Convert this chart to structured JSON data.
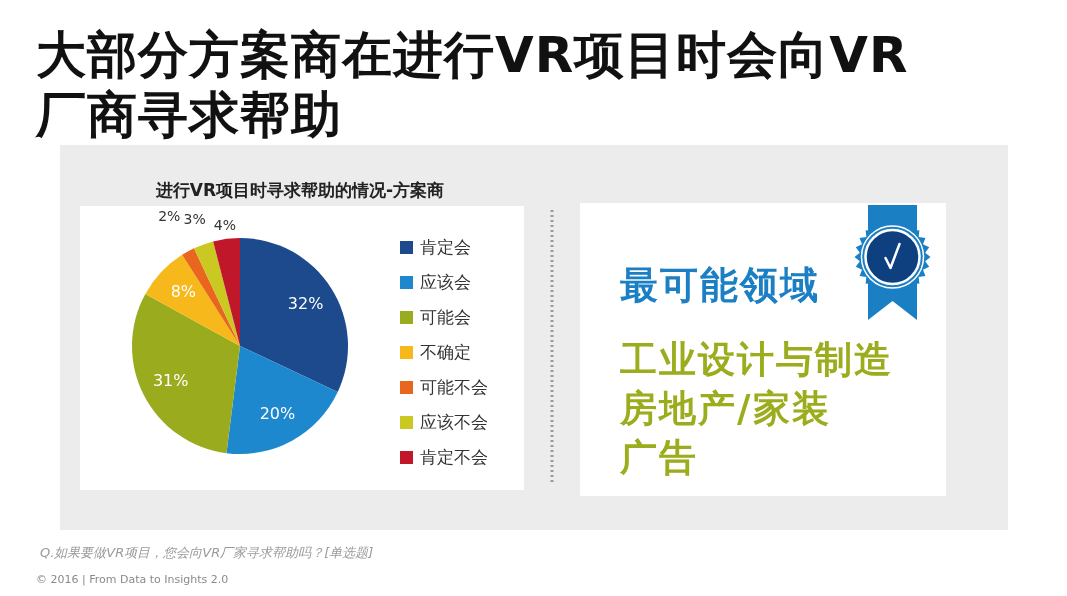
{
  "chart_data": [
    {
      "type": "pie",
      "title": "大部分方案商在进行VR项目时会向VR厂商寻求帮助",
      "subtitle": "进行VR项目时寻求帮助的情况-方案商",
      "categories": [
        "肯定会",
        "应该会",
        "可能会",
        "不确定",
        "可能不会",
        "应该不会",
        "肯定不会"
      ],
      "values": [
        32,
        20,
        31,
        8,
        2,
        3,
        4
      ],
      "colors": [
        "#1c4a8c",
        "#1e88cf",
        "#9bab1e",
        "#f6b81a",
        "#e9661e",
        "#c9c922",
        "#c0172b"
      ],
      "value_labels": [
        "32%",
        "20%",
        "31%",
        "8%",
        "2%",
        "3%",
        "4%"
      ],
      "legend": "right",
      "annotations": [
        "Q.如果要做VR项目，您会向VR厂家寻求帮助吗？[单选题]",
        "© 2016 | From Data to Insights 2.0"
      ]
    },
    {
      "type": "other",
      "title": "最可能领域",
      "annotations": [
        "工业设计与制造",
        "房地产/家装",
        "广告"
      ]
    }
  ]
}
